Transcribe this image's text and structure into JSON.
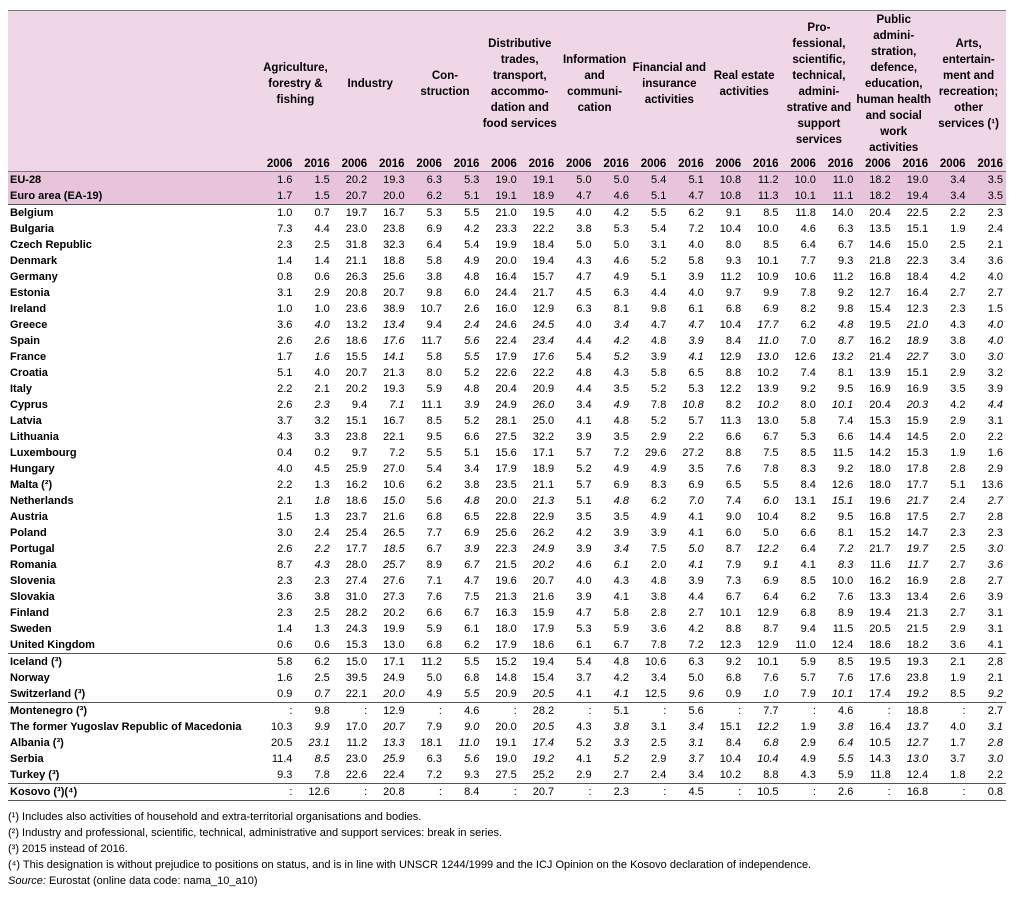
{
  "columns": [
    "Agriculture, forestry & fishing",
    "Industry",
    "Con- struction",
    "Distributive trades, transport, accommo- dation and food services",
    "Information and communi- cation",
    "Financial and insurance activities",
    "Real estate activities",
    "Pro- fessional, scientific, technical, admini- strative and support services",
    "Public admini- stration, defence, education, human health and social work activities",
    "Arts, entertain- ment and recreation; other services (¹)"
  ],
  "years": [
    "2006",
    "2016"
  ],
  "rows": [
    {
      "label": "EU-28",
      "cells": [
        "1.6",
        "1.5",
        "20.2",
        "19.3",
        "6.3",
        "5.3",
        "19.0",
        "19.1",
        "5.0",
        "5.0",
        "5.4",
        "5.1",
        "10.8",
        "11.2",
        "10.0",
        "11.0",
        "18.2",
        "19.0",
        "3.4",
        "3.5"
      ]
    },
    {
      "label": "Euro area (EA-19)",
      "cells": [
        "1.7",
        "1.5",
        "20.7",
        "20.0",
        "6.2",
        "5.1",
        "19.1",
        "18.9",
        "4.7",
        "4.6",
        "5.1",
        "4.7",
        "10.8",
        "11.3",
        "10.1",
        "11.1",
        "18.2",
        "19.4",
        "3.4",
        "3.5"
      ]
    },
    {
      "label": "Belgium",
      "cells": [
        "1.0",
        "0.7",
        "19.7",
        "16.7",
        "5.3",
        "5.5",
        "21.0",
        "19.5",
        "4.0",
        "4.2",
        "5.5",
        "6.2",
        "9.1",
        "8.5",
        "11.8",
        "14.0",
        "20.4",
        "22.5",
        "2.2",
        "2.3"
      ]
    },
    {
      "label": "Bulgaria",
      "cells": [
        "7.3",
        "4.4",
        "23.0",
        "23.8",
        "6.9",
        "4.2",
        "23.3",
        "22.2",
        "3.8",
        "5.3",
        "5.4",
        "7.2",
        "10.4",
        "10.0",
        "4.6",
        "6.3",
        "13.5",
        "15.1",
        "1.9",
        "2.4"
      ]
    },
    {
      "label": "Czech Republic",
      "cells": [
        "2.3",
        "2.5",
        "31.8",
        "32.3",
        "6.4",
        "5.4",
        "19.9",
        "18.4",
        "5.0",
        "5.0",
        "3.1",
        "4.0",
        "8.0",
        "8.5",
        "6.4",
        "6.7",
        "14.6",
        "15.0",
        "2.5",
        "2.1"
      ]
    },
    {
      "label": "Denmark",
      "cells": [
        "1.4",
        "1.4",
        "21.1",
        "18.8",
        "5.8",
        "4.9",
        "20.0",
        "19.4",
        "4.3",
        "4.6",
        "5.2",
        "5.8",
        "9.3",
        "10.1",
        "7.7",
        "9.3",
        "21.8",
        "22.3",
        "3.4",
        "3.6"
      ]
    },
    {
      "label": "Germany",
      "cells": [
        "0.8",
        "0.6",
        "26.3",
        "25.6",
        "3.8",
        "4.8",
        "16.4",
        "15.7",
        "4.7",
        "4.9",
        "5.1",
        "3.9",
        "11.2",
        "10.9",
        "10.6",
        "11.2",
        "16.8",
        "18.4",
        "4.2",
        "4.0"
      ]
    },
    {
      "label": "Estonia",
      "cells": [
        "3.1",
        "2.9",
        "20.8",
        "20.7",
        "9.8",
        "6.0",
        "24.4",
        "21.7",
        "4.5",
        "6.3",
        "4.4",
        "4.0",
        "9.7",
        "9.9",
        "7.8",
        "9.2",
        "12.7",
        "16.4",
        "2.7",
        "2.7"
      ]
    },
    {
      "label": "Ireland",
      "cells": [
        "1.0",
        "1.0",
        "23.6",
        "38.9",
        "10.7",
        "2.6",
        "16.0",
        "12.9",
        "6.3",
        "8.1",
        "9.8",
        "6.1",
        "6.8",
        "6.9",
        "8.2",
        "9.8",
        "15.4",
        "12.3",
        "2.3",
        "1.5"
      ]
    },
    {
      "label": "Greece",
      "cells": [
        "3.6",
        "4.0",
        "13.2",
        "13.4",
        "9.4",
        "2.4",
        "24.6",
        "24.5",
        "4.0",
        "3.4",
        "4.7",
        "4.7",
        "10.4",
        "17.7",
        "6.2",
        "4.8",
        "19.5",
        "21.0",
        "4.3",
        "4.0"
      ]
    },
    {
      "label": "Spain",
      "cells": [
        "2.6",
        "2.6",
        "18.6",
        "17.6",
        "11.7",
        "5.6",
        "22.4",
        "23.4",
        "4.4",
        "4.2",
        "4.8",
        "3.9",
        "8.4",
        "11.0",
        "7.0",
        "8.7",
        "16.2",
        "18.9",
        "3.8",
        "4.0"
      ]
    },
    {
      "label": "France",
      "cells": [
        "1.7",
        "1.6",
        "15.5",
        "14.1",
        "5.8",
        "5.5",
        "17.9",
        "17.6",
        "5.4",
        "5.2",
        "3.9",
        "4.1",
        "12.9",
        "13.0",
        "12.6",
        "13.2",
        "21.4",
        "22.7",
        "3.0",
        "3.0"
      ]
    },
    {
      "label": "Croatia",
      "cells": [
        "5.1",
        "4.0",
        "20.7",
        "21.3",
        "8.0",
        "5.2",
        "22.6",
        "22.2",
        "4.8",
        "4.3",
        "5.8",
        "6.5",
        "8.8",
        "10.2",
        "7.4",
        "8.1",
        "13.9",
        "15.1",
        "2.9",
        "3.2"
      ]
    },
    {
      "label": "Italy",
      "cells": [
        "2.2",
        "2.1",
        "20.2",
        "19.3",
        "5.9",
        "4.8",
        "20.4",
        "20.9",
        "4.4",
        "3.5",
        "5.2",
        "5.3",
        "12.2",
        "13.9",
        "9.2",
        "9.5",
        "16.9",
        "16.9",
        "3.5",
        "3.9"
      ]
    },
    {
      "label": "Cyprus",
      "cells": [
        "2.6",
        "2.3",
        "9.4",
        "7.1",
        "11.1",
        "3.9",
        "24.9",
        "26.0",
        "3.4",
        "4.9",
        "7.8",
        "10.8",
        "8.2",
        "10.2",
        "8.0",
        "10.1",
        "20.4",
        "20.3",
        "4.2",
        "4.4"
      ]
    },
    {
      "label": "Latvia",
      "cells": [
        "3.7",
        "3.2",
        "15.1",
        "16.7",
        "8.5",
        "5.2",
        "28.1",
        "25.0",
        "4.1",
        "4.8",
        "5.2",
        "5.7",
        "11.3",
        "13.0",
        "5.8",
        "7.4",
        "15.3",
        "15.9",
        "2.9",
        "3.1"
      ]
    },
    {
      "label": "Lithuania",
      "cells": [
        "4.3",
        "3.3",
        "23.8",
        "22.1",
        "9.5",
        "6.6",
        "27.5",
        "32.2",
        "3.9",
        "3.5",
        "2.9",
        "2.2",
        "6.6",
        "6.7",
        "5.3",
        "6.6",
        "14.4",
        "14.5",
        "2.0",
        "2.2"
      ]
    },
    {
      "label": "Luxembourg",
      "cells": [
        "0.4",
        "0.2",
        "9.7",
        "7.2",
        "5.5",
        "5.1",
        "15.6",
        "17.1",
        "5.7",
        "7.2",
        "29.6",
        "27.2",
        "8.8",
        "7.5",
        "8.5",
        "11.5",
        "14.2",
        "15.3",
        "1.9",
        "1.6"
      ]
    },
    {
      "label": "Hungary",
      "cells": [
        "4.0",
        "4.5",
        "25.9",
        "27.0",
        "5.4",
        "3.4",
        "17.9",
        "18.9",
        "5.2",
        "4.9",
        "4.9",
        "3.5",
        "7.6",
        "7.8",
        "8.3",
        "9.2",
        "18.0",
        "17.8",
        "2.8",
        "2.9"
      ]
    },
    {
      "label": "Malta (²)",
      "cells": [
        "2.2",
        "1.3",
        "16.2",
        "10.6",
        "6.2",
        "3.8",
        "23.5",
        "21.1",
        "5.7",
        "6.9",
        "8.3",
        "6.9",
        "6.5",
        "5.5",
        "8.4",
        "12.6",
        "18.0",
        "17.7",
        "5.1",
        "13.6"
      ]
    },
    {
      "label": "Netherlands",
      "cells": [
        "2.1",
        "1.8",
        "18.6",
        "15.0",
        "5.6",
        "4.8",
        "20.0",
        "21.3",
        "5.1",
        "4.8",
        "6.2",
        "7.0",
        "7.4",
        "6.0",
        "13.1",
        "15.1",
        "19.6",
        "21.7",
        "2.4",
        "2.7"
      ]
    },
    {
      "label": "Austria",
      "cells": [
        "1.5",
        "1.3",
        "23.7",
        "21.6",
        "6.8",
        "6.5",
        "22.8",
        "22.9",
        "3.5",
        "3.5",
        "4.9",
        "4.1",
        "9.0",
        "10.4",
        "8.2",
        "9.5",
        "16.8",
        "17.5",
        "2.7",
        "2.8"
      ]
    },
    {
      "label": "Poland",
      "cells": [
        "3.0",
        "2.4",
        "25.4",
        "26.5",
        "7.7",
        "6.9",
        "25.6",
        "26.2",
        "4.2",
        "3.9",
        "3.9",
        "4.1",
        "6.0",
        "5.0",
        "6.6",
        "8.1",
        "15.2",
        "14.7",
        "2.3",
        "2.3"
      ]
    },
    {
      "label": "Portugal",
      "cells": [
        "2.6",
        "2.2",
        "17.7",
        "18.5",
        "6.7",
        "3.9",
        "22.3",
        "24.9",
        "3.9",
        "3.4",
        "7.5",
        "5.0",
        "8.7",
        "12.2",
        "6.4",
        "7.2",
        "21.7",
        "19.7",
        "2.5",
        "3.0"
      ]
    },
    {
      "label": "Romania",
      "cells": [
        "8.7",
        "4.3",
        "28.0",
        "25.7",
        "8.9",
        "6.7",
        "21.5",
        "20.2",
        "4.6",
        "6.1",
        "2.0",
        "4.1",
        "7.9",
        "9.1",
        "4.1",
        "8.3",
        "11.6",
        "11.7",
        "2.7",
        "3.6"
      ]
    },
    {
      "label": "Slovenia",
      "cells": [
        "2.3",
        "2.3",
        "27.4",
        "27.6",
        "7.1",
        "4.7",
        "19.6",
        "20.7",
        "4.0",
        "4.3",
        "4.8",
        "3.9",
        "7.3",
        "6.9",
        "8.5",
        "10.0",
        "16.2",
        "16.9",
        "2.8",
        "2.7"
      ]
    },
    {
      "label": "Slovakia",
      "cells": [
        "3.6",
        "3.8",
        "31.0",
        "27.3",
        "7.6",
        "7.5",
        "21.3",
        "21.6",
        "3.9",
        "4.1",
        "3.8",
        "4.4",
        "6.7",
        "6.4",
        "6.2",
        "7.6",
        "13.3",
        "13.4",
        "2.6",
        "3.9"
      ]
    },
    {
      "label": "Finland",
      "cells": [
        "2.3",
        "2.5",
        "28.2",
        "20.2",
        "6.6",
        "6.7",
        "16.3",
        "15.9",
        "4.7",
        "5.8",
        "2.8",
        "2.7",
        "10.1",
        "12.9",
        "6.8",
        "8.9",
        "19.4",
        "21.3",
        "2.7",
        "3.1"
      ]
    },
    {
      "label": "Sweden",
      "cells": [
        "1.4",
        "1.3",
        "24.3",
        "19.9",
        "5.9",
        "6.1",
        "18.0",
        "17.9",
        "5.3",
        "5.9",
        "3.6",
        "4.2",
        "8.8",
        "8.7",
        "9.4",
        "11.5",
        "20.5",
        "21.5",
        "2.9",
        "3.1"
      ]
    },
    {
      "label": "United Kingdom",
      "cells": [
        "0.6",
        "0.6",
        "15.3",
        "13.0",
        "6.8",
        "6.2",
        "17.9",
        "18.6",
        "6.1",
        "6.7",
        "7.8",
        "7.2",
        "12.3",
        "12.9",
        "11.0",
        "12.4",
        "18.6",
        "18.2",
        "3.6",
        "4.1"
      ]
    },
    {
      "label": "Iceland (³)",
      "cells": [
        "5.8",
        "6.2",
        "15.0",
        "17.1",
        "11.2",
        "5.5",
        "15.2",
        "19.4",
        "5.4",
        "4.8",
        "10.6",
        "6.3",
        "9.2",
        "10.1",
        "5.9",
        "8.5",
        "19.5",
        "19.3",
        "2.1",
        "2.8"
      ]
    },
    {
      "label": "Norway",
      "cells": [
        "1.6",
        "2.5",
        "39.5",
        "24.9",
        "5.0",
        "6.8",
        "14.8",
        "15.4",
        "3.7",
        "4.2",
        "3.4",
        "5.0",
        "6.8",
        "7.6",
        "5.7",
        "7.6",
        "17.6",
        "23.8",
        "1.9",
        "2.1"
      ]
    },
    {
      "label": "Switzerland (³)",
      "cells": [
        "0.9",
        "0.7",
        "22.1",
        "20.0",
        "4.9",
        "5.5",
        "20.9",
        "20.5",
        "4.1",
        "4.1",
        "12.5",
        "9.6",
        "0.9",
        "1.0",
        "7.9",
        "10.1",
        "17.4",
        "19.2",
        "8.5",
        "9.2"
      ]
    },
    {
      "label": "Montenegro (³)",
      "cells": [
        ":",
        "9.8",
        ":",
        "12.9",
        ":",
        "4.6",
        ":",
        "28.2",
        ":",
        "5.1",
        ":",
        "5.6",
        ":",
        "7.7",
        ":",
        "4.6",
        ":",
        "18.8",
        ":",
        "2.7"
      ]
    },
    {
      "label": "The former Yugoslav Republic of Macedonia",
      "cells": [
        "10.3",
        "9.9",
        "17.0",
        "20.7",
        "7.9",
        "9.0",
        "20.0",
        "20.5",
        "4.3",
        "3.8",
        "3.1",
        "3.4",
        "15.1",
        "12.2",
        "1.9",
        "3.8",
        "16.4",
        "13.7",
        "4.0",
        "3.1"
      ]
    },
    {
      "label": "Albania (³)",
      "cells": [
        "20.5",
        "23.1",
        "11.2",
        "13.3",
        "18.1",
        "11.0",
        "19.1",
        "17.4",
        "5.2",
        "3.3",
        "2.5",
        "3.1",
        "8.4",
        "6.8",
        "2.9",
        "6.4",
        "10.5",
        "12.7",
        "1.7",
        "2.8"
      ]
    },
    {
      "label": "Serbia",
      "cells": [
        "11.4",
        "8.5",
        "23.0",
        "25.9",
        "6.3",
        "5.6",
        "19.0",
        "19.2",
        "4.1",
        "5.2",
        "2.9",
        "3.7",
        "10.4",
        "10.4",
        "4.9",
        "5.5",
        "14.3",
        "13.0",
        "3.7",
        "3.0"
      ]
    },
    {
      "label": "Turkey (³)",
      "cells": [
        "9.3",
        "7.8",
        "22.6",
        "22.4",
        "7.2",
        "9.3",
        "27.5",
        "25.2",
        "2.9",
        "2.7",
        "2.4",
        "3.4",
        "10.2",
        "8.8",
        "4.3",
        "5.9",
        "11.8",
        "12.4",
        "1.8",
        "2.2"
      ]
    },
    {
      "label": "Kosovo (³)(⁴)",
      "cells": [
        ":",
        "12.6",
        ":",
        "20.8",
        ":",
        "8.4",
        ":",
        "20.7",
        ":",
        "2.3",
        ":",
        "4.5",
        ":",
        "10.5",
        ":",
        "2.6",
        ":",
        "16.8",
        ":",
        "0.8"
      ]
    }
  ],
  "notes": [
    "(¹) Includes also activities of household and extra-territorial organisations and bodies.",
    "(²) Industry and professional, scientific, technical, administrative and support services: break in series.",
    "(³) 2015 instead of 2016.",
    "(⁴) This designation is without prejudice to positions on status, and is in line with UNSCR 1244/1999 and the ICJ Opinion on the Kosovo declaration of independence."
  ],
  "source": {
    "label": "Source:",
    "text": "Eurostat (online data code: nama_10_a10)"
  }
}
